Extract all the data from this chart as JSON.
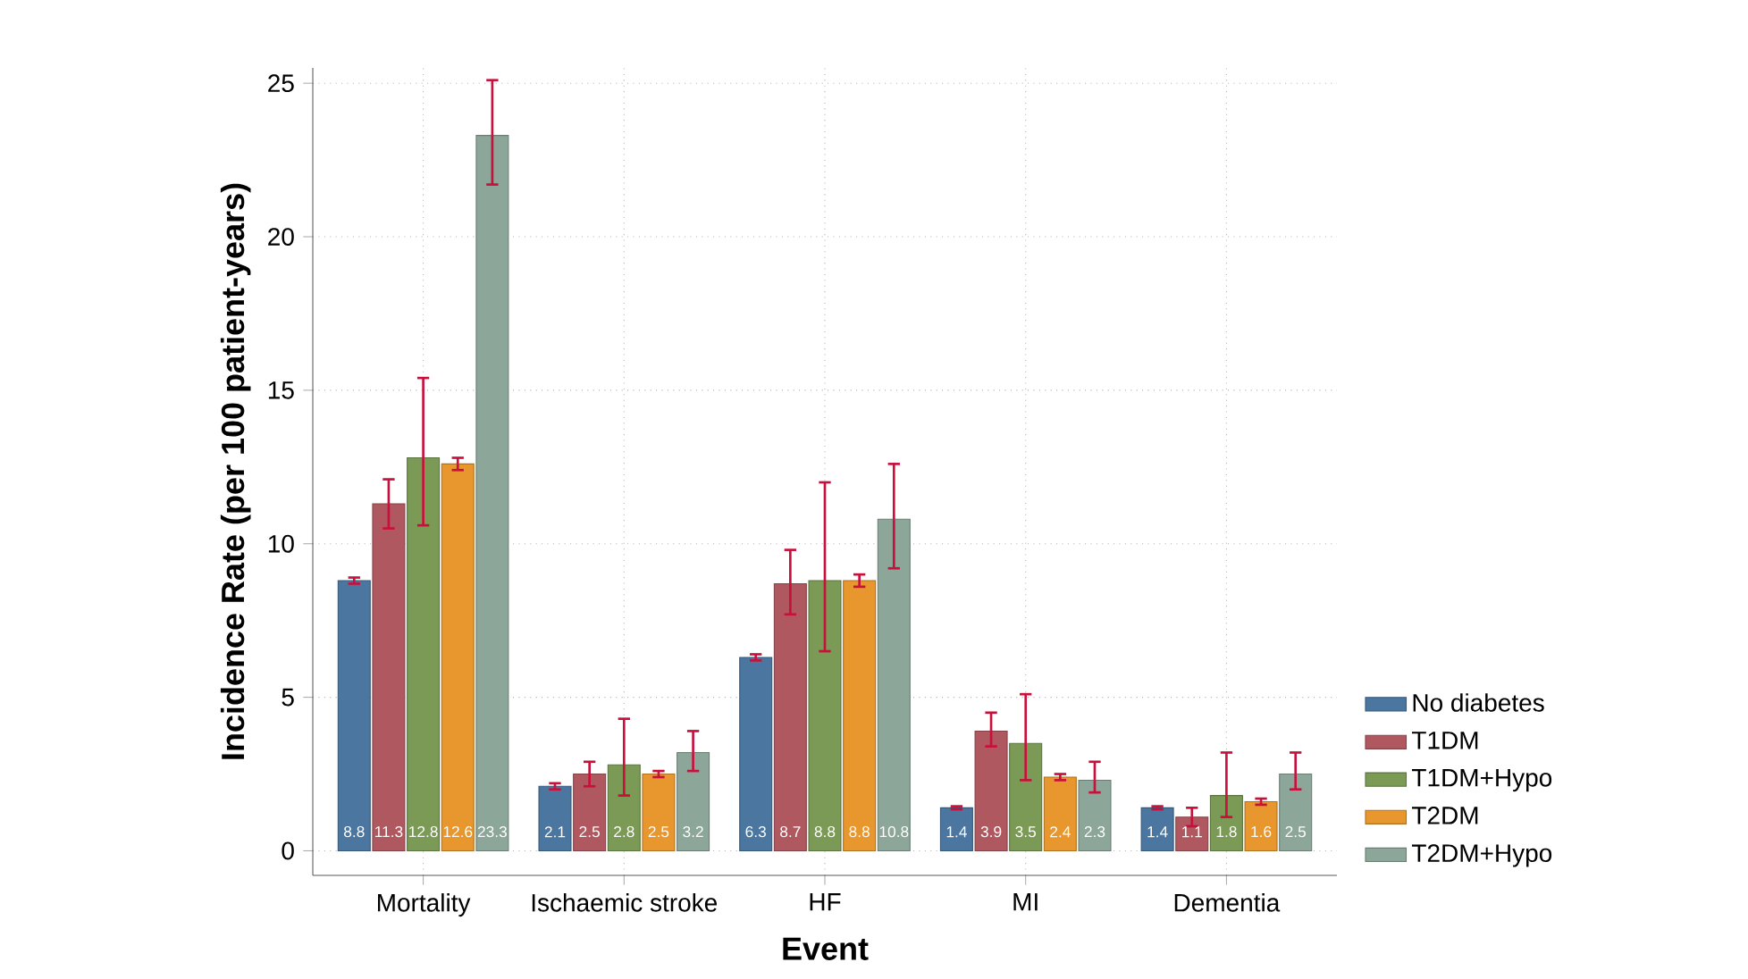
{
  "chart_data": {
    "type": "bar",
    "xlabel": "Event",
    "ylabel": "Incidence Rate (per 100 patient-years)",
    "categories": [
      "Mortality",
      "Ischaemic stroke",
      "HF",
      "MI",
      "Dementia"
    ],
    "series": [
      {
        "name": "No diabetes",
        "color": "#4a76a0",
        "values": [
          8.8,
          2.1,
          6.3,
          1.4,
          1.4
        ],
        "errors": [
          [
            8.7,
            8.9
          ],
          [
            2.0,
            2.2
          ],
          [
            6.2,
            6.4
          ],
          [
            1.35,
            1.45
          ],
          [
            1.35,
            1.45
          ]
        ]
      },
      {
        "name": "T1DM",
        "color": "#b0585f",
        "values": [
          11.3,
          2.5,
          8.7,
          3.9,
          1.1
        ],
        "errors": [
          [
            10.5,
            12.1
          ],
          [
            2.1,
            2.9
          ],
          [
            7.7,
            9.8
          ],
          [
            3.4,
            4.5
          ],
          [
            0.8,
            1.4
          ]
        ]
      },
      {
        "name": "T1DM+Hypo",
        "color": "#7a9a55",
        "values": [
          12.8,
          2.8,
          8.8,
          3.5,
          1.8
        ],
        "errors": [
          [
            10.6,
            15.4
          ],
          [
            1.8,
            4.3
          ],
          [
            6.5,
            12.0
          ],
          [
            2.3,
            5.1
          ],
          [
            1.1,
            3.2
          ]
        ]
      },
      {
        "name": "T2DM",
        "color": "#e8962e",
        "values": [
          12.6,
          2.5,
          8.8,
          2.4,
          1.6
        ],
        "errors": [
          [
            12.4,
            12.8
          ],
          [
            2.4,
            2.6
          ],
          [
            8.6,
            9.0
          ],
          [
            2.3,
            2.5
          ],
          [
            1.5,
            1.7
          ]
        ]
      },
      {
        "name": "T2DM+Hypo",
        "color": "#8ca699",
        "values": [
          23.3,
          3.2,
          10.8,
          2.3,
          2.5
        ],
        "errors": [
          [
            21.7,
            25.1
          ],
          [
            2.6,
            3.9
          ],
          [
            9.2,
            12.6
          ],
          [
            1.9,
            2.9
          ],
          [
            2.0,
            3.2
          ]
        ]
      }
    ],
    "ylim": [
      -0.8,
      25.5
    ],
    "yticks": [
      0,
      5,
      10,
      15,
      20,
      25
    ],
    "grid": true,
    "legend": "right",
    "data_labels": true
  }
}
